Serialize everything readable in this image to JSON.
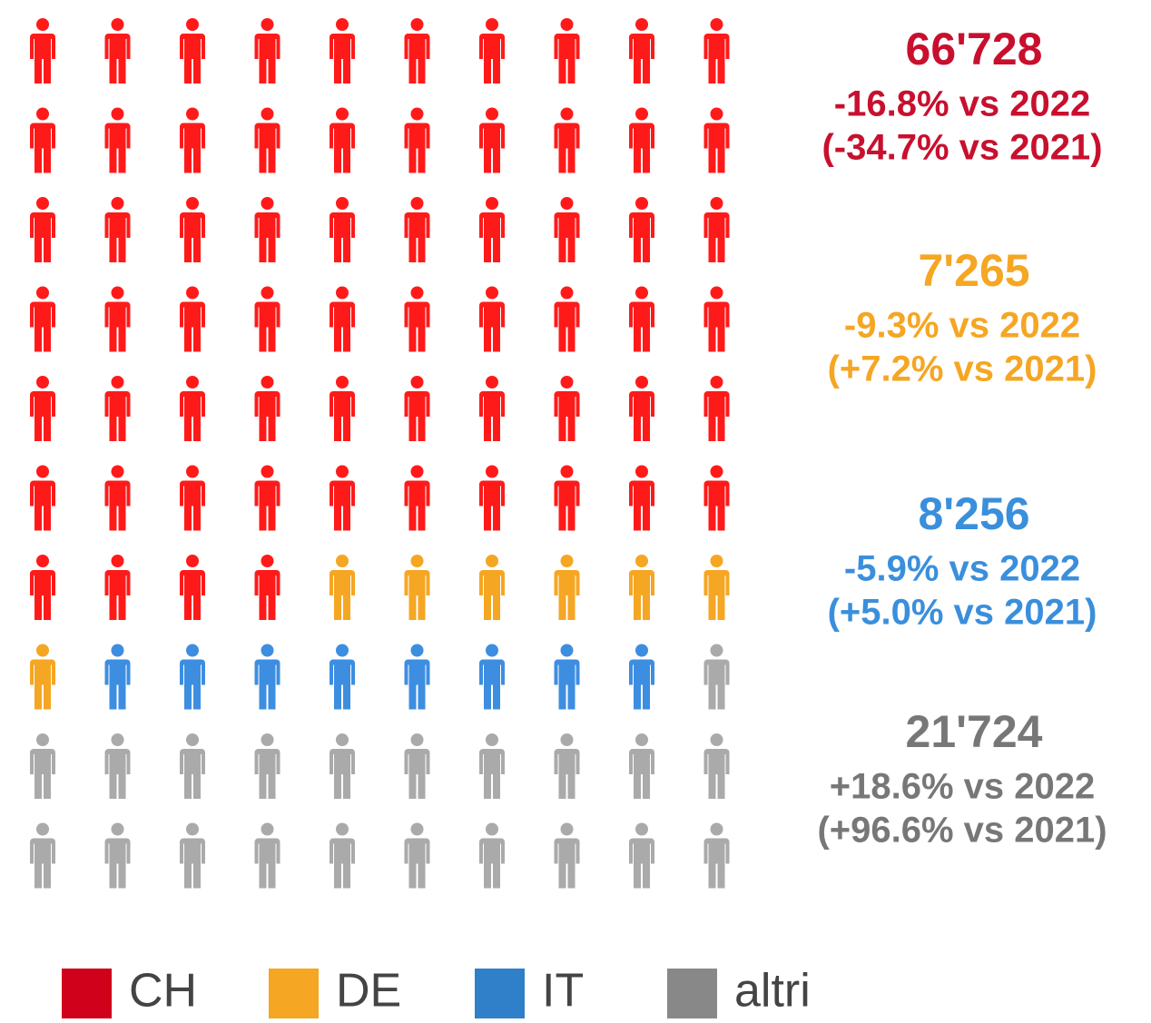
{
  "chart_data": {
    "type": "pictogram",
    "series": [
      {
        "name": "CH",
        "values": [
          66728
        ],
        "value_labels": [
          "66'728"
        ],
        "change_2022": "-16.8% vs 2022",
        "change_2021": "(-34.7% vs 2021)",
        "color": "#ff1a1a",
        "label_color": "#c8102e",
        "legend_color": "#d0021b"
      },
      {
        "name": "DE",
        "values": [
          7265
        ],
        "value_labels": [
          "7'265"
        ],
        "change_2022": "-9.3% vs 2022",
        "change_2021": "(+7.2% vs 2021)",
        "color": "#f5a623",
        "label_color": "#f5a623",
        "legend_color": "#f5a623"
      },
      {
        "name": "IT",
        "values": [
          8256
        ],
        "value_labels": [
          "8'256"
        ],
        "change_2022": "-5.9% vs 2022",
        "change_2021": "(+5.0% vs 2021)",
        "color": "#3d8ee0",
        "label_color": "#3a8fdc",
        "legend_color": "#2f80c8"
      },
      {
        "name": "altri",
        "values": [
          21724
        ],
        "value_labels": [
          "21'724"
        ],
        "change_2022": "+18.6% vs 2022",
        "change_2021": "(+96.6% vs 2021)",
        "color": "#aaaaaa",
        "label_color": "#777777",
        "legend_color": "#888888"
      }
    ]
  }
}
